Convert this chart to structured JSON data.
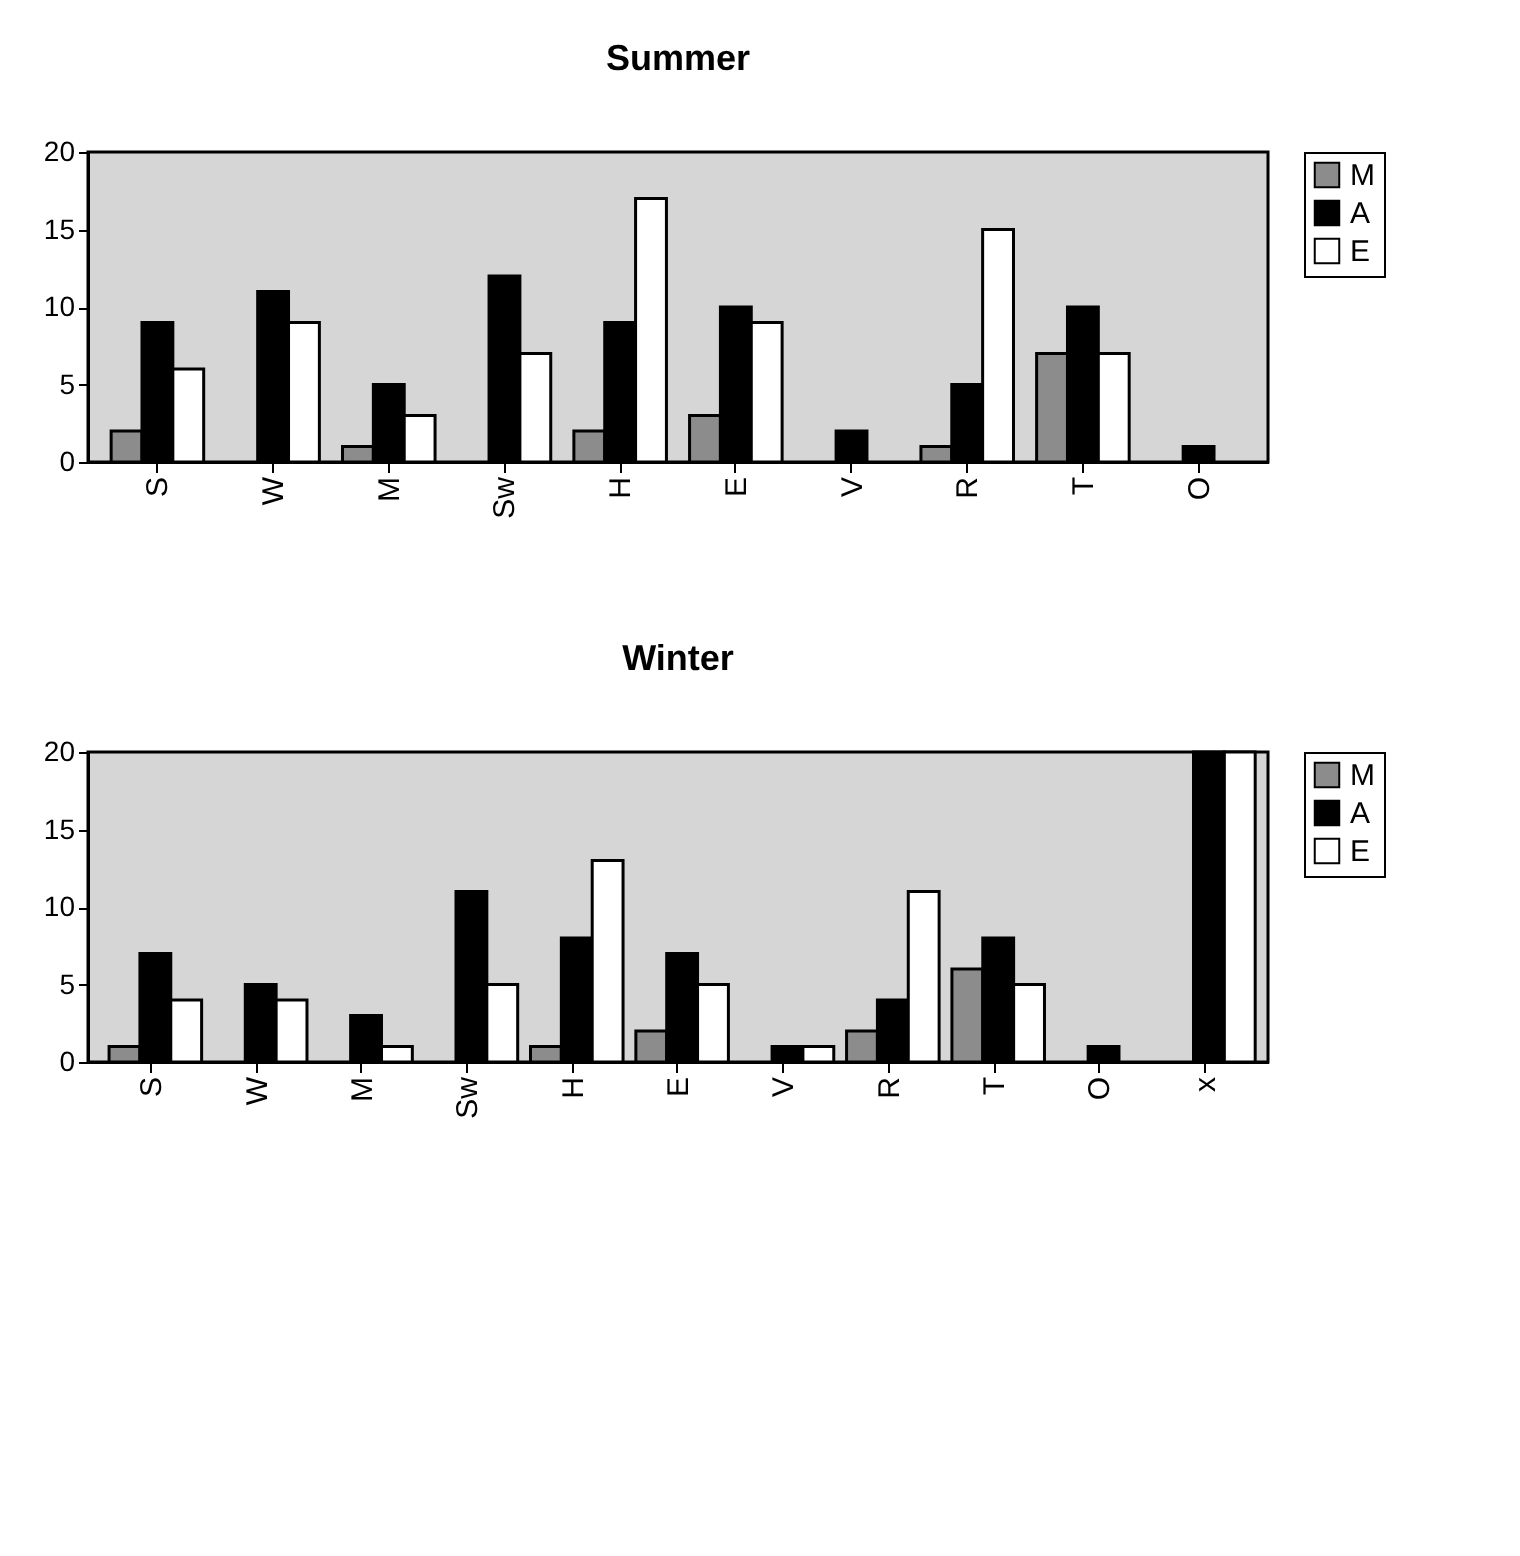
{
  "chart_data": [
    {
      "type": "bar",
      "title": "Summer",
      "categories": [
        "S",
        "W",
        "M",
        "Sw",
        "H",
        "E",
        "V",
        "R",
        "T",
        "O"
      ],
      "ylim": [
        0,
        20
      ],
      "yticks": [
        0,
        5,
        10,
        15,
        20
      ],
      "grid": false,
      "legend": "right",
      "series": [
        {
          "name": "M",
          "color": "#8c8c8c",
          "values": [
            2,
            0,
            1,
            0,
            2,
            3,
            0,
            1,
            7,
            0
          ]
        },
        {
          "name": "A",
          "color": "#000000",
          "values": [
            9,
            11,
            5,
            12,
            9,
            10,
            2,
            5,
            10,
            1
          ]
        },
        {
          "name": "E",
          "color": "#ffffff",
          "values": [
            6,
            9,
            3,
            7,
            17,
            9,
            0,
            15,
            7,
            0
          ]
        }
      ]
    },
    {
      "type": "bar",
      "title": "Winter",
      "categories": [
        "S",
        "W",
        "M",
        "Sw",
        "H",
        "E",
        "V",
        "R",
        "T",
        "O",
        "x"
      ],
      "ylim": [
        0,
        20
      ],
      "yticks": [
        0,
        5,
        10,
        15,
        20
      ],
      "grid": false,
      "legend": "right",
      "series": [
        {
          "name": "M",
          "color": "#8c8c8c",
          "values": [
            1,
            0,
            0,
            0,
            1,
            2,
            0,
            2,
            6,
            0,
            0
          ]
        },
        {
          "name": "A",
          "color": "#000000",
          "values": [
            7,
            5,
            3,
            11,
            8,
            7,
            1,
            4,
            8,
            1,
            20
          ]
        },
        {
          "name": "E",
          "color": "#ffffff",
          "values": [
            4,
            4,
            1,
            5,
            13,
            5,
            1,
            11,
            5,
            0,
            20
          ]
        }
      ]
    }
  ]
}
